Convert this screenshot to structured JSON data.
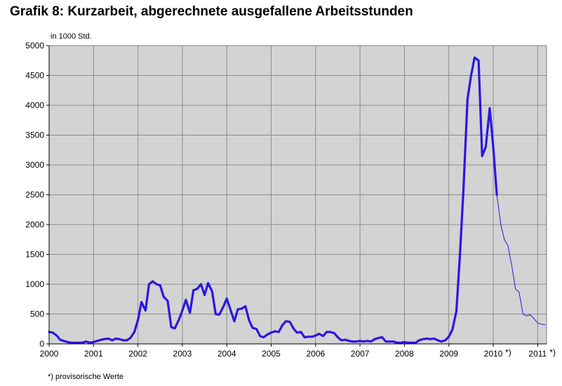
{
  "title": "Grafik 8: Kurzarbeit, abgerechnete ausgefallene Arbeitsstunden",
  "footnote": "*) provisorische Werte",
  "chart_data": {
    "type": "line",
    "title": "Grafik 8: Kurzarbeit, abgerechnete ausgefallene Arbeitsstunden",
    "ylabel": "in 1000 Std.",
    "xlabel": "",
    "ylim": [
      0,
      5000
    ],
    "xlim": [
      2000,
      2011.2
    ],
    "y_ticks": [
      0,
      500,
      1000,
      1500,
      2000,
      2500,
      3000,
      3500,
      4000,
      4500,
      5000
    ],
    "x_ticks": [
      {
        "value": 2000,
        "label": "2000"
      },
      {
        "value": 2001,
        "label": "2001"
      },
      {
        "value": 2002,
        "label": "2002"
      },
      {
        "value": 2003,
        "label": "2003"
      },
      {
        "value": 2004,
        "label": "2004"
      },
      {
        "value": 2005,
        "label": "2005"
      },
      {
        "value": 2006,
        "label": "2006"
      },
      {
        "value": 2007,
        "label": "2007"
      },
      {
        "value": 2008,
        "label": "2008"
      },
      {
        "value": 2009,
        "label": "2009"
      },
      {
        "value": 2010,
        "label": "2010",
        "suffix": "*)"
      },
      {
        "value": 2011,
        "label": "2011",
        "suffix": "*)"
      }
    ],
    "grid": "both",
    "background_color": "#d3d3d3",
    "line_color": "#2c16e0",
    "series": [
      {
        "style": "thick",
        "x": [
          2000.0,
          2000.08,
          2000.17,
          2000.25,
          2000.33,
          2000.42,
          2000.5,
          2000.58,
          2000.67,
          2000.75,
          2000.83,
          2000.92,
          2001.0,
          2001.08,
          2001.17,
          2001.25,
          2001.33,
          2001.42,
          2001.5,
          2001.58,
          2001.67,
          2001.75,
          2001.83,
          2001.92,
          2002.0,
          2002.08,
          2002.17,
          2002.25,
          2002.33,
          2002.42,
          2002.5,
          2002.58,
          2002.67,
          2002.75,
          2002.83,
          2002.92,
          2003.0,
          2003.08,
          2003.17,
          2003.25,
          2003.33,
          2003.42,
          2003.5,
          2003.58,
          2003.67,
          2003.75,
          2003.83,
          2003.92,
          2004.0,
          2004.08,
          2004.17,
          2004.25,
          2004.33,
          2004.42,
          2004.5,
          2004.58,
          2004.67,
          2004.75,
          2004.83,
          2004.92,
          2005.0,
          2005.08,
          2005.17,
          2005.25,
          2005.33,
          2005.42,
          2005.5,
          2005.58,
          2005.67,
          2005.75,
          2005.83,
          2005.92,
          2006.0,
          2006.08,
          2006.17,
          2006.25,
          2006.33,
          2006.42,
          2006.5,
          2006.58,
          2006.67,
          2006.75,
          2006.83,
          2006.92,
          2007.0,
          2007.08,
          2007.17,
          2007.25,
          2007.33,
          2007.42,
          2007.5,
          2007.58,
          2007.67,
          2007.75,
          2007.83,
          2007.92,
          2008.0,
          2008.08,
          2008.17,
          2008.25,
          2008.33,
          2008.42,
          2008.5,
          2008.58,
          2008.67,
          2008.75,
          2008.83,
          2008.92,
          2009.0,
          2009.08,
          2009.17,
          2009.25,
          2009.33,
          2009.42,
          2009.5,
          2009.58,
          2009.67,
          2009.75,
          2009.83,
          2009.92
        ],
        "y": [
          200,
          190,
          140,
          70,
          50,
          30,
          20,
          20,
          20,
          20,
          40,
          20,
          30,
          50,
          70,
          80,
          90,
          60,
          90,
          80,
          60,
          60,
          100,
          200,
          400,
          700,
          560,
          1000,
          1050,
          1000,
          980,
          790,
          720,
          280,
          260,
          400,
          560,
          740,
          520,
          900,
          920,
          1000,
          820,
          1020,
          880,
          500,
          490,
          620,
          760,
          580,
          380,
          580,
          590,
          630,
          400,
          270,
          250,
          130,
          110,
          160,
          190,
          210,
          200,
          310,
          380,
          370,
          260,
          190,
          200,
          110,
          120,
          120,
          140,
          170,
          130,
          200,
          200,
          180,
          110,
          60,
          70,
          50,
          40,
          40,
          50,
          40,
          50,
          40,
          80,
          100,
          110,
          40,
          40,
          40,
          20,
          20,
          30,
          20,
          20,
          20,
          60,
          80,
          90,
          80,
          90,
          60,
          40,
          60,
          120,
          240,
          550,
          1500,
          2600,
          4100,
          4500,
          4800,
          4750,
          3150,
          3300,
          3950
        ]
      },
      {
        "style": "thick",
        "x": [
          2009.92,
          2010.0,
          2010.08
        ],
        "y": [
          3950,
          3300,
          2500
        ]
      },
      {
        "style": "thin",
        "x": [
          2010.08,
          2010.17,
          2010.25,
          2010.33,
          2010.42,
          2010.5,
          2010.58,
          2010.67,
          2010.75,
          2010.83,
          2010.92,
          2011.0,
          2011.08,
          2011.17
        ],
        "y": [
          2500,
          2000,
          1750,
          1650,
          1300,
          920,
          870,
          500,
          470,
          490,
          420,
          350,
          330,
          320
        ]
      }
    ]
  }
}
